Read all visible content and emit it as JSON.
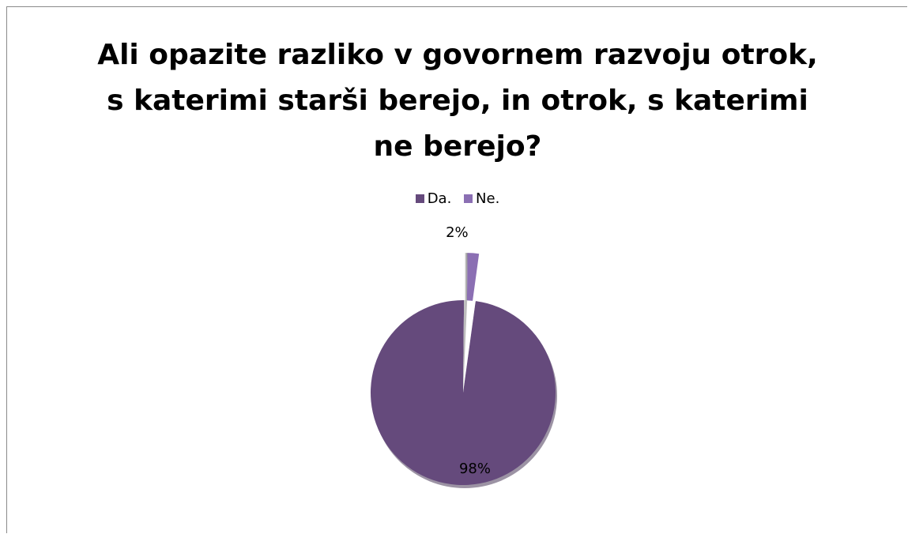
{
  "chart_data": {
    "type": "pie",
    "title_lines": [
      "Ali opazite razliko v govornem razvoju otrok,",
      "s katerimi starši berejo, in otrok, s katerimi",
      "ne berejo?"
    ],
    "legend_position": "top",
    "categories": [
      "Da.",
      "Ne."
    ],
    "values": [
      98,
      2
    ],
    "data_labels": [
      "98%",
      "2%"
    ],
    "colors": [
      "#654a7c",
      "#8b6fb3"
    ],
    "exploded_slice": "Ne."
  }
}
